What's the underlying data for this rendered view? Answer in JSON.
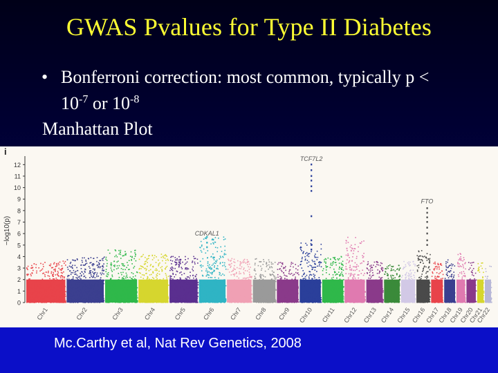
{
  "slide": {
    "title": "GWAS Pvalues for Type II Diabetes",
    "bullet_symbol": "•",
    "bullet_text": "Bonferroni correction: most common, typically p <",
    "bullet_line2_a": "10",
    "bullet_sup_a": "-7",
    "bullet_line2_b": " or 10",
    "bullet_sup_b": "-8",
    "subheading": "Manhattan Plot",
    "citation": "Mc.Carthy et al, Nat Rev Genetics, 2008"
  },
  "chart_data": {
    "type": "scatter",
    "panel_label": "i",
    "ylabel": "−log10(p)",
    "ylim": [
      0,
      12.5
    ],
    "yticks": [
      0,
      1,
      2,
      3,
      4,
      5,
      6,
      7,
      8,
      9,
      10,
      11,
      12
    ],
    "grid": false,
    "chromosomes": [
      {
        "label": "Chr1",
        "color": "#e8434a",
        "width": 1.0,
        "max": 3.6
      },
      {
        "label": "Chr2",
        "color": "#3b3f8f",
        "width": 0.95,
        "max": 4.0
      },
      {
        "label": "Chr3",
        "color": "#2fb84a",
        "width": 0.82,
        "max": 4.6
      },
      {
        "label": "Chr4",
        "color": "#d6d62e",
        "width": 0.76,
        "max": 4.2
      },
      {
        "label": "Chr5",
        "color": "#5a2f8f",
        "width": 0.72,
        "max": 4.0
      },
      {
        "label": "Chr6",
        "color": "#2fb4c4",
        "width": 0.68,
        "max": 5.7
      },
      {
        "label": "Chr7",
        "color": "#f0a0b4",
        "width": 0.63,
        "max": 3.9
      },
      {
        "label": "Chr8",
        "color": "#9a9a9a",
        "width": 0.58,
        "max": 3.8
      },
      {
        "label": "Chr9",
        "color": "#8a3a8a",
        "width": 0.55,
        "max": 3.5
      },
      {
        "label": "Chr10",
        "color": "#2a3f9a",
        "width": 0.54,
        "max": 5.2
      },
      {
        "label": "Chr11",
        "color": "#2fb84a",
        "width": 0.54,
        "max": 4.0
      },
      {
        "label": "Chr12",
        "color": "#e07ab0",
        "width": 0.52,
        "max": 5.8
      },
      {
        "label": "Chr13",
        "color": "#8a3a8a",
        "width": 0.42,
        "max": 3.6
      },
      {
        "label": "Chr14",
        "color": "#3a8a3a",
        "width": 0.4,
        "max": 3.3
      },
      {
        "label": "Chr15",
        "color": "#d2c9e6",
        "width": 0.36,
        "max": 3.6
      },
      {
        "label": "Chr16",
        "color": "#4a4a4a",
        "width": 0.34,
        "max": 4.6
      },
      {
        "label": "Chr17",
        "color": "#e8434a",
        "width": 0.3,
        "max": 3.6
      },
      {
        "label": "Chr18",
        "color": "#3b3f8f",
        "width": 0.28,
        "max": 3.7
      },
      {
        "label": "Chr19",
        "color": "#e07ab0",
        "width": 0.22,
        "max": 4.3
      },
      {
        "label": "Chr20",
        "color": "#8a3a8a",
        "width": 0.24,
        "max": 3.6
      },
      {
        "label": "Chr21",
        "color": "#d6d62e",
        "width": 0.16,
        "max": 3.5
      },
      {
        "label": "Chr22",
        "color": "#b8b8d8",
        "width": 0.16,
        "max": 3.3
      }
    ],
    "annotations": [
      {
        "label": "TCF7L2",
        "chr": "Chr10",
        "pos": 0.55,
        "peak": 12.2,
        "column": [
          12.0,
          11.5,
          11.0,
          10.6,
          10.1,
          9.7,
          7.5,
          5.4,
          5.0,
          4.6
        ]
      },
      {
        "label": "FTO",
        "chr": "Chr16",
        "pos": 0.8,
        "peak": 8.5,
        "column": [
          8.2,
          7.8,
          7.4,
          7.0,
          6.5,
          6.0,
          5.4,
          5.0
        ]
      },
      {
        "label": "CDKAL1",
        "chr": "Chr6",
        "pos": 0.3,
        "peak": 5.7,
        "column": [
          5.7,
          5.2,
          4.8
        ]
      }
    ]
  }
}
